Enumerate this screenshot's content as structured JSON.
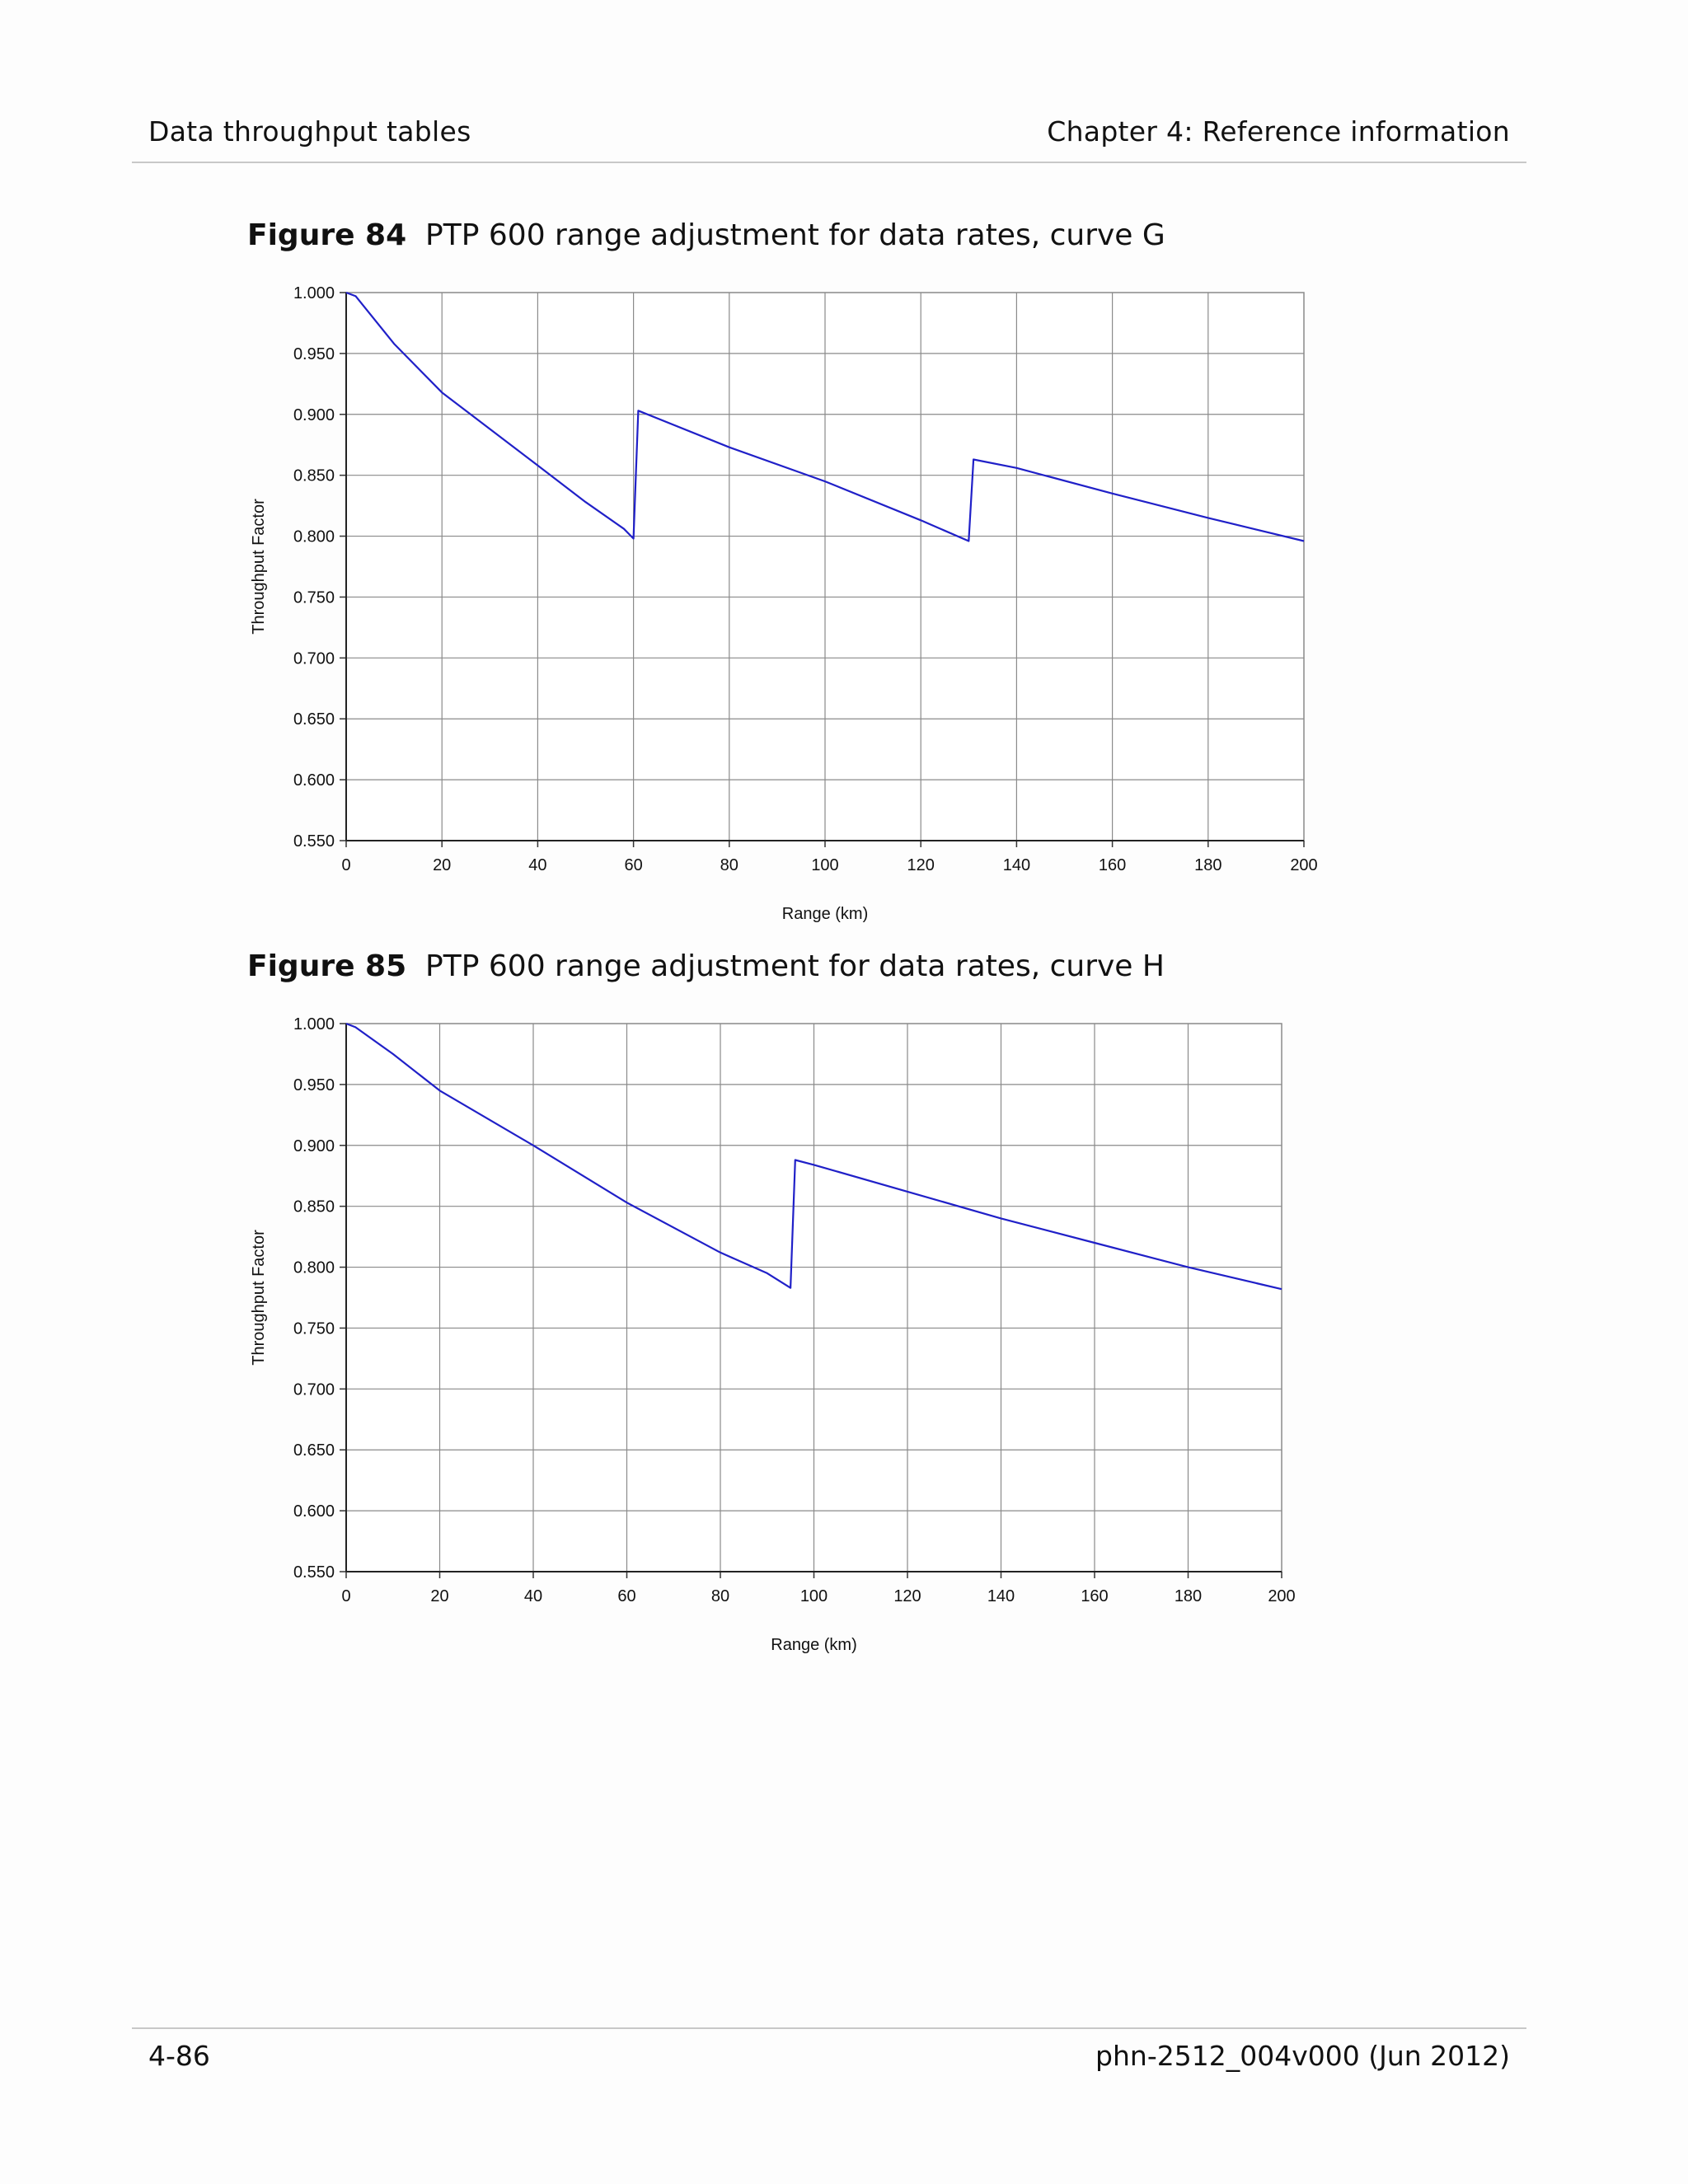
{
  "header": {
    "left": "Data throughput tables",
    "right": "Chapter 4:  Reference information"
  },
  "footer": {
    "left": "4-86",
    "right": "phn-2512_004v000 (Jun 2012)"
  },
  "figures": [
    {
      "number": "Figure 84",
      "caption": "PTP 600 range adjustment for data rates, curve G"
    },
    {
      "number": "Figure 85",
      "caption": "PTP 600 range adjustment for data rates, curve H"
    }
  ],
  "chart_data": [
    {
      "type": "line",
      "title": "",
      "xlabel": "Range (km)",
      "ylabel": "Throughput Factor",
      "xlim": [
        0,
        200
      ],
      "ylim": [
        0.55,
        1.0
      ],
      "x_ticks": [
        "0",
        "20",
        "40",
        "60",
        "80",
        "100",
        "120",
        "140",
        "160",
        "180",
        "200"
      ],
      "y_ticks": [
        "0.550",
        "0.600",
        "0.650",
        "0.700",
        "0.750",
        "0.800",
        "0.850",
        "0.900",
        "0.950",
        "1.000"
      ],
      "grid": true,
      "line_color": "#2020c8",
      "series": [
        {
          "x": [
            0,
            2,
            10,
            20,
            30,
            40,
            50,
            58,
            60,
            61,
            80,
            100,
            120,
            130,
            131,
            140,
            160,
            180,
            200
          ],
          "y": [
            1.0,
            0.997,
            0.958,
            0.918,
            0.888,
            0.858,
            0.828,
            0.806,
            0.798,
            0.903,
            0.873,
            0.845,
            0.813,
            0.796,
            0.863,
            0.856,
            0.835,
            0.815,
            0.796
          ]
        }
      ]
    },
    {
      "type": "line",
      "title": "",
      "xlabel": "Range (km)",
      "ylabel": "Throughput Factor",
      "xlim": [
        0,
        200
      ],
      "ylim": [
        0.55,
        1.0
      ],
      "x_ticks": [
        "0",
        "20",
        "40",
        "60",
        "80",
        "100",
        "120",
        "140",
        "160",
        "180",
        "200"
      ],
      "y_ticks": [
        "0.550",
        "0.600",
        "0.650",
        "0.700",
        "0.750",
        "0.800",
        "0.850",
        "0.900",
        "0.950",
        "1.000"
      ],
      "grid": true,
      "line_color": "#2020c8",
      "series": [
        {
          "x": [
            0,
            2,
            10,
            20,
            40,
            60,
            80,
            90,
            95,
            96,
            100,
            120,
            140,
            160,
            180,
            200
          ],
          "y": [
            1.0,
            0.997,
            0.975,
            0.945,
            0.9,
            0.853,
            0.812,
            0.795,
            0.783,
            0.888,
            0.884,
            0.862,
            0.84,
            0.82,
            0.8,
            0.782
          ]
        }
      ]
    }
  ]
}
